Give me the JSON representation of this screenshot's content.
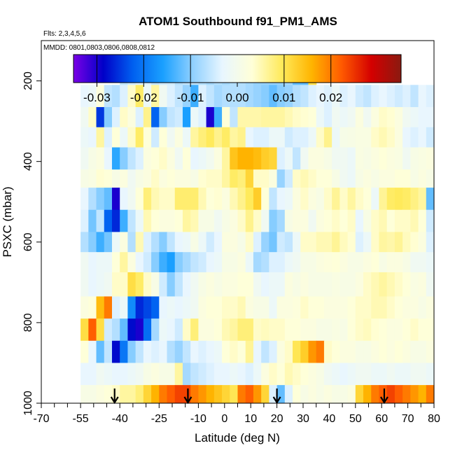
{
  "chart_data": {
    "type": "heatmap",
    "title": "ATOM1 Southbound f91_PM1_AMS",
    "subtitle_flights": "Flts: 2,3,4,5,6",
    "subtitle_dates": "MMDD: 0801,0803,0806,0808,0812",
    "xlabel": "Latitude (deg N)",
    "ylabel": "PSXC (mbar)",
    "xlim": [
      -70,
      80
    ],
    "ylim": [
      1000,
      100
    ],
    "x_ticks": [
      "-70",
      "-55",
      "-40",
      "-25",
      "-10",
      "0",
      "10",
      "20",
      "30",
      "40",
      "50",
      "60",
      "70",
      "80"
    ],
    "x_tick_values": [
      -70,
      -55,
      -40,
      -25,
      -10,
      0,
      10,
      20,
      30,
      40,
      50,
      60,
      70,
      80
    ],
    "x_minor_ticks": [
      -65,
      -60,
      -50,
      -45,
      -35,
      -30,
      -20,
      -15,
      -5,
      5,
      15,
      25,
      35,
      45,
      55,
      65,
      75
    ],
    "y_ticks": [
      "200",
      "400",
      "600",
      "800",
      "1000"
    ],
    "y_tick_values": [
      200,
      400,
      600,
      800,
      1000
    ],
    "colorbar": {
      "range": [
        -0.035,
        0.035
      ],
      "tick_labels": [
        "-0.03",
        "-0.02",
        "-0.01",
        "0.00",
        "0.01",
        "0.02"
      ],
      "tick_values": [
        -0.03,
        -0.02,
        -0.01,
        0.0,
        0.01,
        0.02
      ],
      "divider_values": [
        -0.03,
        -0.02,
        -0.01,
        0.01,
        0.02
      ],
      "colors": [
        "#7a00e6",
        "#0000c8",
        "#0060f0",
        "#1aa0ff",
        "#8fd0ff",
        "#e8f6ff",
        "#ffffd8",
        "#ffea5a",
        "#ffb400",
        "#ff5a00",
        "#d40000",
        "#8a1a10"
      ]
    },
    "arrow_latitudes": [
      -42,
      -14,
      20,
      61
    ],
    "column_edges": [
      -55,
      -52,
      -49,
      -46,
      -43,
      -40,
      -37,
      -34,
      -31,
      -28,
      -25,
      -22,
      -19,
      -16,
      -13,
      -10,
      -7,
      -4,
      -1,
      2,
      5,
      8,
      11,
      14,
      17,
      20,
      23,
      26,
      29,
      32,
      35,
      38,
      41,
      44,
      47,
      50,
      53,
      56,
      59,
      62,
      65,
      68,
      71,
      74,
      77,
      80
    ],
    "pressure_edges": [
      170,
      210,
      265,
      315,
      365,
      420,
      465,
      520,
      575,
      625,
      675,
      735,
      790,
      845,
      900,
      955,
      1000
    ],
    "values": [
      [
        null,
        null,
        null,
        null,
        null,
        -0.006,
        -0.005,
        -0.004,
        -0.004,
        -0.006,
        -0.005,
        -0.005,
        -0.007,
        -0.006,
        -0.006,
        -0.007,
        -0.008,
        -0.007,
        -0.008,
        -0.007,
        -0.007,
        -0.008,
        -0.009,
        -0.009,
        -0.009,
        -0.009,
        -0.008,
        -0.012,
        -0.012,
        0.011,
        null,
        null,
        null,
        null,
        null,
        null,
        null,
        null,
        null,
        null,
        null,
        null,
        null,
        null,
        null
      ],
      [
        -0.003,
        -0.002,
        0.0025,
        -0.006,
        -0.007,
        -0.004,
        0.004,
        0.009,
        -0.002,
        0.006,
        -0.001,
        -0.004,
        -0.006,
        -0.009,
        -0.014,
        -0.004,
        -0.006,
        -0.008,
        -0.007,
        -0.007,
        -0.007,
        -0.008,
        -0.009,
        -0.01,
        -0.012,
        -0.01,
        -0.009,
        -0.007,
        -0.006,
        -0.004,
        -0.003,
        -0.004,
        -0.002,
        -0.004,
        -0.003,
        -0.005,
        -0.006,
        -0.004,
        -0.003,
        -0.004,
        -0.005,
        -0.004,
        -0.006,
        -0.003,
        -0.004
      ],
      [
        -0.001,
        0.004,
        -0.025,
        -0.01,
        -0.004,
        0.004,
        0.002,
        -0.004,
        0.007,
        -0.022,
        -0.01,
        -0.006,
        -0.005,
        -0.016,
        -0.002,
        -0.004,
        -0.03,
        -0.014,
        0.003,
        -0.006,
        0.0055,
        0.0055,
        0.0055,
        0.006,
        0.006,
        0.006,
        0.005,
        0.004,
        0.0035,
        0.003,
        -0.002,
        -0.004,
        -0.001,
        -0.002,
        -0.001,
        0.002,
        -0.001,
        0.002,
        0.004,
        0.0035,
        0.002,
        -0.001,
        -0.002,
        -0.003,
        -0.003
      ],
      [
        -0.002,
        -0.003,
        0.006,
        -0.004,
        0.003,
        -0.002,
        0.004,
        0.009,
        0.003,
        -0.005,
        0.003,
        -0.001,
        0.002,
        -0.002,
        0.006,
        0.008,
        0.0095,
        0.007,
        0.009,
        0.006,
        0.007,
        -0.003,
        -0.004,
        -0.004,
        -0.002,
        -0.002,
        -0.005,
        -0.004,
        -0.004,
        -0.002,
        0.004,
        0.007,
        -0.002,
        0.0008,
        0.001,
        0.0015,
        0.0015,
        0.004,
        0.005,
        0.004,
        0.002,
        -0.003,
        -0.004,
        -0.003,
        -0.005
      ],
      [
        -0.001,
        0.001,
        0.002,
        -0.003,
        -0.015,
        -0.01,
        -0.006,
        -0.004,
        0.002,
        0.003,
        0.004,
        0.002,
        -0.001,
        0.003,
        -0.003,
        -0.002,
        -0.0005,
        0.002,
        0.006,
        0.014,
        0.016,
        0.016,
        0.015,
        0.013,
        0.012,
        -0.004,
        -0.002,
        -0.006,
        -0.001,
        0.002,
        0.002,
        0.001,
        -0.001,
        -0.001,
        -0.002,
        0.0015,
        0.001,
        0.002,
        0.003,
        0.002,
        0.0015,
        -0.001,
        0.001,
        0.0015,
        0.002
      ],
      [
        0.001,
        0.0015,
        0.0035,
        0.003,
        0.001,
        0.002,
        -0.001,
        0.001,
        0.002,
        0.004,
        0.002,
        0.003,
        0.002,
        0.002,
        0.001,
        0.0035,
        0.004,
        0.004,
        0.006,
        0.009,
        0.008,
        0.012,
        0.004,
        0.004,
        0.002,
        -0.009,
        -0.005,
        0.004,
        0.005,
        0.004,
        0.003,
        0.003,
        0.001,
        -0.001,
        -0.002,
        0.001,
        0.002,
        0.001,
        0.002,
        0.002,
        0.003,
        0.003,
        0.001,
        0.002,
        0.001
      ],
      [
        -0.003,
        -0.007,
        -0.01,
        -0.012,
        -0.03,
        -0.003,
        -0.001,
        0.003,
        0.008,
        0.005,
        0.004,
        0.004,
        0.0085,
        0.0085,
        0.0085,
        0.005,
        0.003,
        0.0035,
        0.002,
        0.005,
        0.007,
        0.0095,
        0.013,
        0.003,
        -0.006,
        -0.003,
        -0.002,
        0.002,
        0.004,
        0.002,
        0.001,
        0.004,
        0.0065,
        0.004,
        0.006,
        0.004,
        0.003,
        -0.002,
        0.0065,
        0.009,
        0.0095,
        0.009,
        0.0075,
        0.006,
        -0.012
      ],
      [
        -0.004,
        -0.011,
        -0.006,
        -0.022,
        -0.026,
        -0.014,
        -0.006,
        -0.002,
        0.005,
        0.003,
        0.002,
        0.002,
        0.003,
        0.006,
        0.005,
        0.001,
        0.001,
        -0.001,
        0.001,
        0.002,
        0.004,
        0.007,
        0.004,
        -0.001,
        -0.01,
        -0.008,
        0.001,
        0.002,
        0.002,
        -0.001,
        0.002,
        0.003,
        0.004,
        0.003,
        0.004,
        -0.003,
        0.001,
        0.004,
        0.005,
        0.003,
        0.004,
        0.004,
        0.005,
        0.003,
        -0.005
      ],
      [
        -0.007,
        -0.01,
        -0.014,
        -0.011,
        -0.002,
        0.002,
        -0.007,
        0.005,
        -0.004,
        -0.007,
        -0.01,
        -0.006,
        -0.003,
        -0.002,
        0.001,
        -0.002,
        -0.005,
        -0.003,
        0.002,
        0.002,
        0.0008,
        0.004,
        -0.004,
        -0.009,
        -0.011,
        -0.005,
        -0.006,
        -0.002,
        0.004,
        0.004,
        0.005,
        0.005,
        0.0065,
        0.0045,
        0.0035,
        -0.004,
        -0.002,
        0.004,
        0.006,
        0.0055,
        0.0065,
        0.0045,
        0.0035,
        0.002,
        -0.004
      ],
      [
        -0.001,
        -0.003,
        -0.002,
        -0.002,
        0.003,
        0.006,
        0.002,
        -0.003,
        -0.005,
        -0.01,
        -0.014,
        -0.016,
        -0.01,
        -0.008,
        -0.006,
        -0.005,
        -0.003,
        -0.002,
        0.001,
        0.001,
        0.002,
        -0.002,
        -0.008,
        -0.007,
        -0.004,
        -0.004,
        -0.002,
        -0.001,
        0.001,
        0.001,
        0.002,
        0.0025,
        0.003,
        0.002,
        0.001,
        0.001,
        0.002,
        0.003,
        0.001,
        0.002,
        0.002,
        0.001,
        -0.001,
        -0.001,
        -0.002
      ],
      [
        -0.001,
        -0.003,
        -0.002,
        -0.001,
        0.004,
        0.004,
        0.011,
        0.009,
        0.004,
        0.001,
        -0.005,
        -0.01,
        -0.006,
        -0.003,
        -0.001,
        0.001,
        0.002,
        0.001,
        0.002,
        0.002,
        0.003,
        0.003,
        -0.001,
        -0.003,
        -0.002,
        -0.002,
        0.002,
        0.001,
        0.002,
        0.001,
        0.001,
        0.001,
        0.0015,
        0.001,
        0.001,
        0.002,
        0.004,
        0.005,
        0.006,
        0.005,
        0.004,
        0.003,
        0.0015,
        0.002,
        -0.001
      ],
      [
        0.002,
        0.003,
        0.015,
        0.02,
        -0.004,
        -0.002,
        -0.018,
        -0.026,
        -0.024,
        -0.022,
        -0.003,
        -0.002,
        -0.003,
        -0.002,
        -0.001,
        0.002,
        0.003,
        0.003,
        0.004,
        0.004,
        0.005,
        0.002,
        0.001,
        0.001,
        -0.002,
        0.002,
        0.002,
        0.0025,
        0.004,
        0.003,
        0.003,
        0.002,
        0.002,
        0.002,
        0.003,
        0.004,
        0.004,
        0.005,
        0.005,
        0.004,
        0.003,
        0.002,
        0.002,
        0.001,
        0.002
      ],
      [
        0.011,
        0.022,
        0.011,
        -0.005,
        -0.007,
        -0.012,
        -0.028,
        -0.03,
        -0.021,
        -0.008,
        -0.002,
        -0.003,
        -0.005,
        0.004,
        0.008,
        0.002,
        0.002,
        0.003,
        0.005,
        0.006,
        0.008,
        0.008,
        0.004,
        0.0045,
        0.004,
        0.004,
        0.003,
        0.003,
        0.002,
        0.002,
        0.001,
        0.001,
        0.0015,
        0.001,
        0.003,
        0.004,
        0.0045,
        0.0035,
        0.003,
        0.002,
        0.002,
        0.003,
        0.004,
        0.003,
        0.003
      ],
      [
        0.003,
        -0.003,
        -0.012,
        -0.006,
        -0.028,
        -0.02,
        -0.01,
        -0.006,
        -0.003,
        -0.004,
        -0.003,
        -0.007,
        -0.009,
        -0.006,
        -0.003,
        -0.004,
        -0.003,
        -0.002,
        0.003,
        0.004,
        0.003,
        0.0065,
        -0.003,
        -0.006,
        -0.004,
        0.002,
        0.004,
        0.01,
        0.013,
        0.018,
        0.02,
        0.004,
        0.003,
        0.002,
        0.002,
        0.001,
        0.001,
        0.002,
        0.003,
        0.002,
        0.003,
        0.002,
        0.001,
        0.001,
        0.002
      ],
      [
        -0.003,
        -0.003,
        -0.001,
        -0.002,
        -0.003,
        -0.003,
        -0.002,
        -0.001,
        0.001,
        0.002,
        0.001,
        0.001,
        0.006,
        -0.008,
        -0.006,
        -0.005,
        -0.004,
        -0.003,
        -0.003,
        -0.002,
        -0.003,
        -0.004,
        -0.002,
        0.002,
        0.004,
        0.003,
        0.005,
        0.004,
        0.003,
        0.002,
        0.001,
        -0.001,
        -0.002,
        -0.003,
        -0.002,
        -0.001,
        -0.001,
        -0.002,
        -0.002,
        -0.001,
        -0.002,
        -0.002,
        -0.001,
        -0.001,
        -0.002
      ],
      [
        0.001,
        0.001,
        0.002,
        0.003,
        0.004,
        0.006,
        0.006,
        0.008,
        0.012,
        0.016,
        0.02,
        0.022,
        0.024,
        0.024,
        0.02,
        0.018,
        0.016,
        0.014,
        0.012,
        0.01,
        0.02,
        0.022,
        0.018,
        0.012,
        -0.004,
        -0.012,
        -0.004,
        0.003,
        0.001,
        0.002,
        0.001,
        0.002,
        0.001,
        0.001,
        0.002,
        0.012,
        0.016,
        0.02,
        0.022,
        0.024,
        0.022,
        0.02,
        0.018,
        0.016,
        0.02
      ]
    ]
  }
}
